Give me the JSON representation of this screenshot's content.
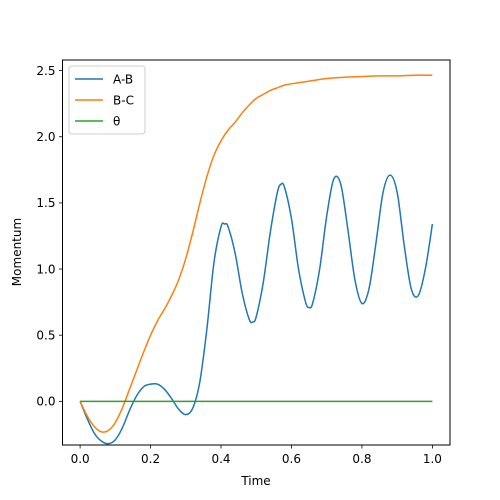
{
  "chart_data": {
    "type": "line",
    "title": "",
    "xlabel": "Time",
    "ylabel": "Momentum",
    "xlim": [
      -0.05,
      1.05
    ],
    "ylim": [
      -0.33,
      2.58
    ],
    "xticks": [
      0.0,
      0.2,
      0.4,
      0.6,
      0.8,
      1.0
    ],
    "xtick_labels": [
      "0.0",
      "0.2",
      "0.4",
      "0.6",
      "0.8",
      "1.0"
    ],
    "yticks": [
      0.0,
      0.5,
      1.0,
      1.5,
      2.0,
      2.5
    ],
    "ytick_labels": [
      "0.0",
      "0.5",
      "1.0",
      "1.5",
      "2.0",
      "2.5"
    ],
    "grid": false,
    "legend_position": "top-left",
    "series": [
      {
        "name": "A-B",
        "color": "#1f77b4",
        "x": [
          0.0,
          0.02,
          0.04,
          0.06,
          0.08,
          0.1,
          0.12,
          0.14,
          0.16,
          0.18,
          0.2,
          0.22,
          0.24,
          0.26,
          0.28,
          0.3,
          0.32,
          0.34,
          0.36,
          0.38,
          0.4,
          0.41,
          0.42,
          0.44,
          0.46,
          0.48,
          0.49,
          0.5,
          0.52,
          0.54,
          0.56,
          0.57,
          0.58,
          0.6,
          0.62,
          0.64,
          0.65,
          0.66,
          0.68,
          0.7,
          0.72,
          0.74,
          0.76,
          0.78,
          0.8,
          0.82,
          0.84,
          0.86,
          0.88,
          0.9,
          0.92,
          0.94,
          0.96,
          0.98,
          1.0
        ],
        "y": [
          0.0,
          -0.13,
          -0.24,
          -0.3,
          -0.32,
          -0.29,
          -0.2,
          -0.07,
          0.04,
          0.11,
          0.13,
          0.13,
          0.09,
          0.02,
          -0.06,
          -0.1,
          -0.05,
          0.15,
          0.55,
          1.05,
          1.32,
          1.34,
          1.32,
          1.12,
          0.82,
          0.62,
          0.6,
          0.64,
          0.9,
          1.28,
          1.58,
          1.64,
          1.62,
          1.38,
          1.0,
          0.75,
          0.71,
          0.74,
          1.0,
          1.4,
          1.68,
          1.64,
          1.3,
          0.92,
          0.74,
          0.85,
          1.2,
          1.58,
          1.71,
          1.58,
          1.18,
          0.85,
          0.8,
          1.0,
          1.34
        ]
      },
      {
        "name": "B-C",
        "color": "#ff7f0e",
        "x": [
          0.0,
          0.02,
          0.04,
          0.06,
          0.08,
          0.1,
          0.12,
          0.14,
          0.16,
          0.18,
          0.2,
          0.22,
          0.24,
          0.26,
          0.28,
          0.3,
          0.32,
          0.34,
          0.36,
          0.38,
          0.4,
          0.42,
          0.44,
          0.46,
          0.48,
          0.5,
          0.52,
          0.54,
          0.56,
          0.58,
          0.6,
          0.65,
          0.7,
          0.75,
          0.8,
          0.85,
          0.9,
          0.95,
          1.0
        ],
        "y": [
          0.0,
          -0.11,
          -0.19,
          -0.23,
          -0.22,
          -0.16,
          -0.05,
          0.09,
          0.23,
          0.37,
          0.5,
          0.61,
          0.7,
          0.8,
          0.92,
          1.08,
          1.28,
          1.5,
          1.7,
          1.86,
          1.97,
          2.05,
          2.11,
          2.18,
          2.24,
          2.29,
          2.32,
          2.35,
          2.37,
          2.39,
          2.4,
          2.42,
          2.44,
          2.45,
          2.455,
          2.46,
          2.46,
          2.465,
          2.465
        ]
      },
      {
        "name": "θ",
        "color": "#2ca02c",
        "x": [
          0.0,
          1.0
        ],
        "y": [
          0.0,
          0.0
        ]
      }
    ]
  }
}
